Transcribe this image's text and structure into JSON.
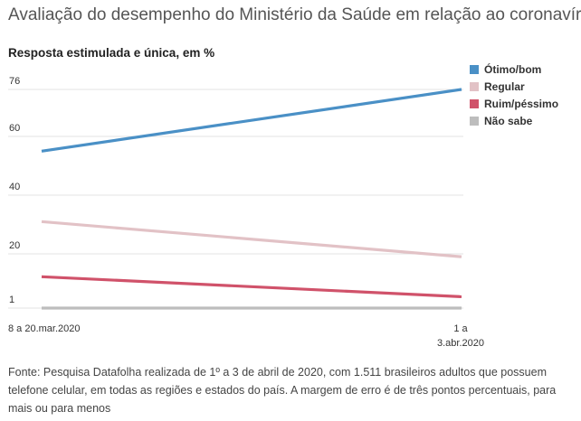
{
  "header": {
    "title": "Avaliação do desempenho do Ministério da Saúde em relação ao coronavírus",
    "subtitle": "Resposta estimulada e única, em %"
  },
  "chart_data": {
    "type": "line",
    "x": [
      "8 a 20.mar.2020",
      "1 a 3.abr.2020"
    ],
    "x_tick_labels": [
      [
        "8 a 20.mar.2020"
      ],
      [
        "1 a",
        "3.abr.2020"
      ]
    ],
    "y_ticks": [
      1,
      20,
      40,
      60,
      76
    ],
    "ylim": [
      1,
      76
    ],
    "grid": true,
    "legend_position": "top-right",
    "series": [
      {
        "name": "Ótimo/bom",
        "values": [
          55,
          76
        ],
        "color": "#4a90c6"
      },
      {
        "name": "Regular",
        "values": [
          31,
          19
        ],
        "color": "#e2c2c6"
      },
      {
        "name": "Ruim/péssimo",
        "values": [
          12,
          5
        ],
        "color": "#d0526a"
      },
      {
        "name": "Não sabe",
        "values": [
          1,
          1
        ],
        "color": "#bdbdbd"
      }
    ]
  },
  "footer": {
    "source": "Fonte: Pesquisa Datafolha realizada de 1º a 3 de abril de 2020, com 1.511 brasileiros adultos que possuem telefone celular, em todas as regiões e estados do país. A margem de erro é de três pontos percentuais, para mais ou para menos"
  }
}
